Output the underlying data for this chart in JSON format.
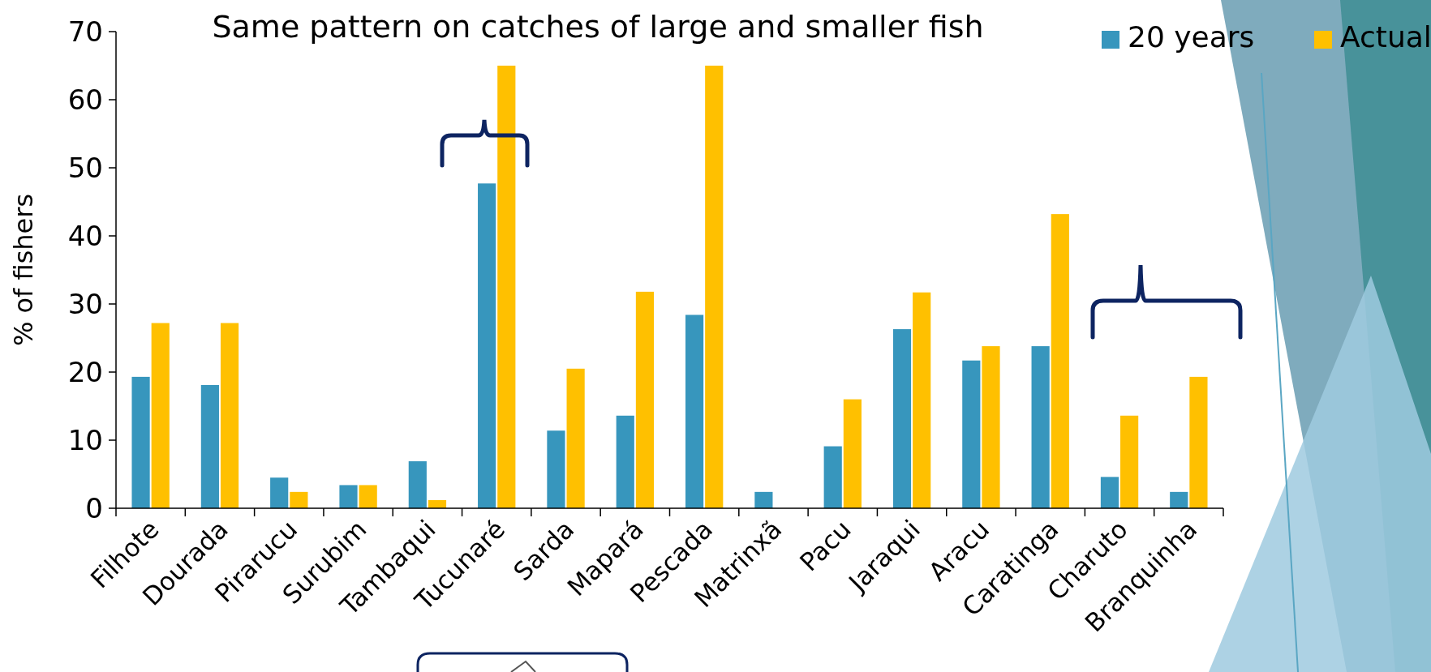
{
  "chart_data": {
    "type": "bar",
    "title": "Same pattern on catches of large and smaller fish",
    "ylabel": "% of fishers",
    "categories": [
      "Filhote",
      "Dourada",
      "Pirarucu",
      "Surubim",
      "Tambaqui",
      "Tucunaré",
      "Sarda",
      "Mapará",
      "Pescada",
      "Matrinxã",
      "Pacu",
      "Jaraqui",
      "Aracu",
      "Caratinga",
      "Charuto",
      "Branquinha"
    ],
    "series": [
      {
        "name": "20 years",
        "color": "#3796bd",
        "values": [
          19.3,
          18.1,
          4.5,
          3.4,
          6.9,
          47.7,
          11.4,
          13.6,
          28.4,
          2.4,
          9.1,
          26.3,
          21.7,
          23.8,
          4.6,
          2.4
        ]
      },
      {
        "name": "Actual",
        "color": "#ffc000",
        "values": [
          27.2,
          27.2,
          2.4,
          3.4,
          1.2,
          65,
          20.5,
          31.8,
          65,
          0,
          16.0,
          31.7,
          23.8,
          43.2,
          13.6,
          19.3
        ]
      }
    ],
    "ylim": [
      0,
      70
    ],
    "yticks": [
      0,
      10,
      20,
      30,
      40,
      50,
      60,
      70
    ],
    "grid": false,
    "legend": "top right"
  }
}
